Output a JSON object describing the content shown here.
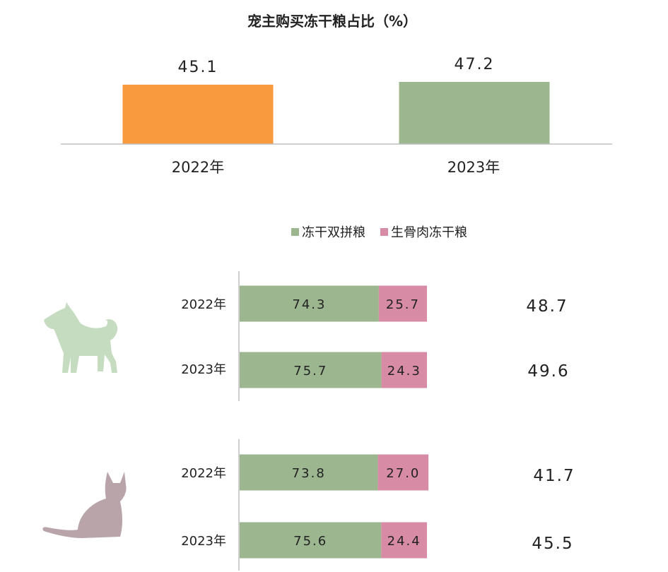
{
  "colors": {
    "orange": "#FA9A3F",
    "green": "#9CB690",
    "pink": "#D78BA4",
    "dog_icon": "#C6DCC0",
    "cat_icon": "#B9A4AA",
    "axis": "#bfbfbf"
  },
  "chart_data": [
    {
      "type": "bar",
      "title": "宠主购买冻干粮占比（%）",
      "categories": [
        "2022年",
        "2023年"
      ],
      "values": [
        45.1,
        47.2
      ],
      "value_labels": [
        "45.1",
        "47.2"
      ],
      "bar_colors": [
        "#FA9A3F",
        "#9CB690"
      ],
      "ylim": [
        0,
        50
      ]
    },
    {
      "type": "bar",
      "orientation": "horizontal-stacked",
      "legend": [
        "冻干双拼粮",
        "生骨肉冻干粮"
      ],
      "legend_position": "top",
      "groups": [
        {
          "icon": "dog-icon",
          "rows": [
            {
              "label": "2022年",
              "values": [
                74.3,
                25.7
              ],
              "value_labels": [
                "74.3",
                "25.7"
              ],
              "total_label": "48.7"
            },
            {
              "label": "2023年",
              "values": [
                75.7,
                24.3
              ],
              "value_labels": [
                "75.7",
                "24.3"
              ],
              "total_label": "49.6"
            }
          ]
        },
        {
          "icon": "cat-icon",
          "rows": [
            {
              "label": "2022年",
              "values": [
                73.8,
                27.0
              ],
              "value_labels": [
                "73.8",
                "27.0"
              ],
              "total_label": "41.7"
            },
            {
              "label": "2023年",
              "values": [
                75.6,
                24.4
              ],
              "value_labels": [
                "75.6",
                "24.4"
              ],
              "total_label": "45.5"
            }
          ]
        }
      ]
    }
  ]
}
